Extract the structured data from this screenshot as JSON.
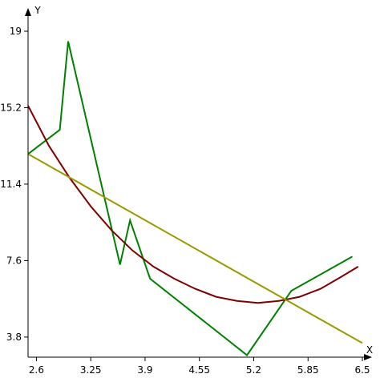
{
  "chart_data": {
    "type": "line",
    "title": "",
    "xlabel": "X",
    "ylabel": "Y",
    "xlim": [
      2.5,
      6.5
    ],
    "ylim": [
      2.8,
      19.8
    ],
    "grid": false,
    "legend": "none",
    "x_ticks": [
      {
        "value": 2.6,
        "label": "2.6"
      },
      {
        "value": 3.25,
        "label": "3.25"
      },
      {
        "value": 3.9,
        "label": "3.9"
      },
      {
        "value": 4.55,
        "label": "4.55"
      },
      {
        "value": 5.2,
        "label": "5.2"
      },
      {
        "value": 5.85,
        "label": "5.85"
      },
      {
        "value": 6.5,
        "label": "6.5"
      }
    ],
    "y_ticks": [
      {
        "value": 3.8,
        "label": "3.8"
      },
      {
        "value": 7.6,
        "label": "7.6"
      },
      {
        "value": 11.4,
        "label": "11.4"
      },
      {
        "value": 15.2,
        "label": "15.2"
      },
      {
        "value": 19,
        "label": "19"
      }
    ],
    "series": [
      {
        "color": "#008000",
        "x": [
          2.5,
          2.88,
          2.98,
          3.6,
          3.72,
          3.96,
          5.12,
          5.65,
          6.38
        ],
        "y": [
          12.9,
          14.1,
          18.5,
          7.4,
          9.6,
          6.7,
          2.9,
          6.1,
          7.8
        ]
      },
      {
        "color": "#800000",
        "x": [
          2.5,
          2.75,
          3.0,
          3.25,
          3.5,
          3.75,
          4.0,
          4.25,
          4.5,
          4.75,
          5.0,
          5.25,
          5.5,
          5.75,
          6.0,
          6.25,
          6.45
        ],
        "y": [
          15.3,
          13.3,
          11.7,
          10.3,
          9.1,
          8.1,
          7.3,
          6.7,
          6.2,
          5.8,
          5.6,
          5.5,
          5.6,
          5.8,
          6.2,
          6.8,
          7.3
        ]
      },
      {
        "color": "#999900",
        "x": [
          2.5,
          6.5
        ],
        "y": [
          12.9,
          3.5
        ]
      }
    ]
  }
}
